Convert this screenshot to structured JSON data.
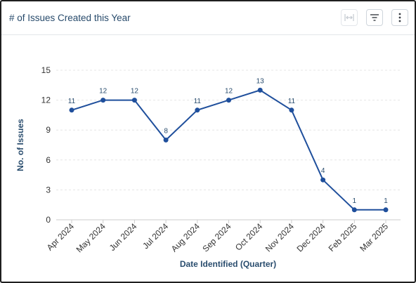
{
  "header": {
    "title": "# of Issues Created this Year",
    "tools": {
      "fit_icon": "fit-width-icon",
      "filter_icon": "filter-icon",
      "more_icon": "more-vertical-icon"
    }
  },
  "colors": {
    "line": "#1f4f9c",
    "grid": "#e6e6e6",
    "axis_title": "#2a4d6e"
  },
  "chart_data": {
    "type": "line",
    "title": "",
    "xlabel": "Date Identified (Quarter)",
    "ylabel": "No. of Issues",
    "categories": [
      "Apr 2024",
      "May 2024",
      "Jun 2024",
      "Jul 2024",
      "Aug 2024",
      "Sep 2024",
      "Oct 2024",
      "Nov 2024",
      "Dec 2024",
      "Feb 2025",
      "Mar 2025"
    ],
    "values": [
      11,
      12,
      12,
      8,
      11,
      12,
      13,
      11,
      4,
      1,
      1
    ],
    "ylim": [
      0,
      15
    ],
    "yticks": [
      0,
      3,
      6,
      9,
      12,
      15
    ],
    "grid": true,
    "data_labels": true,
    "legend": "none"
  }
}
